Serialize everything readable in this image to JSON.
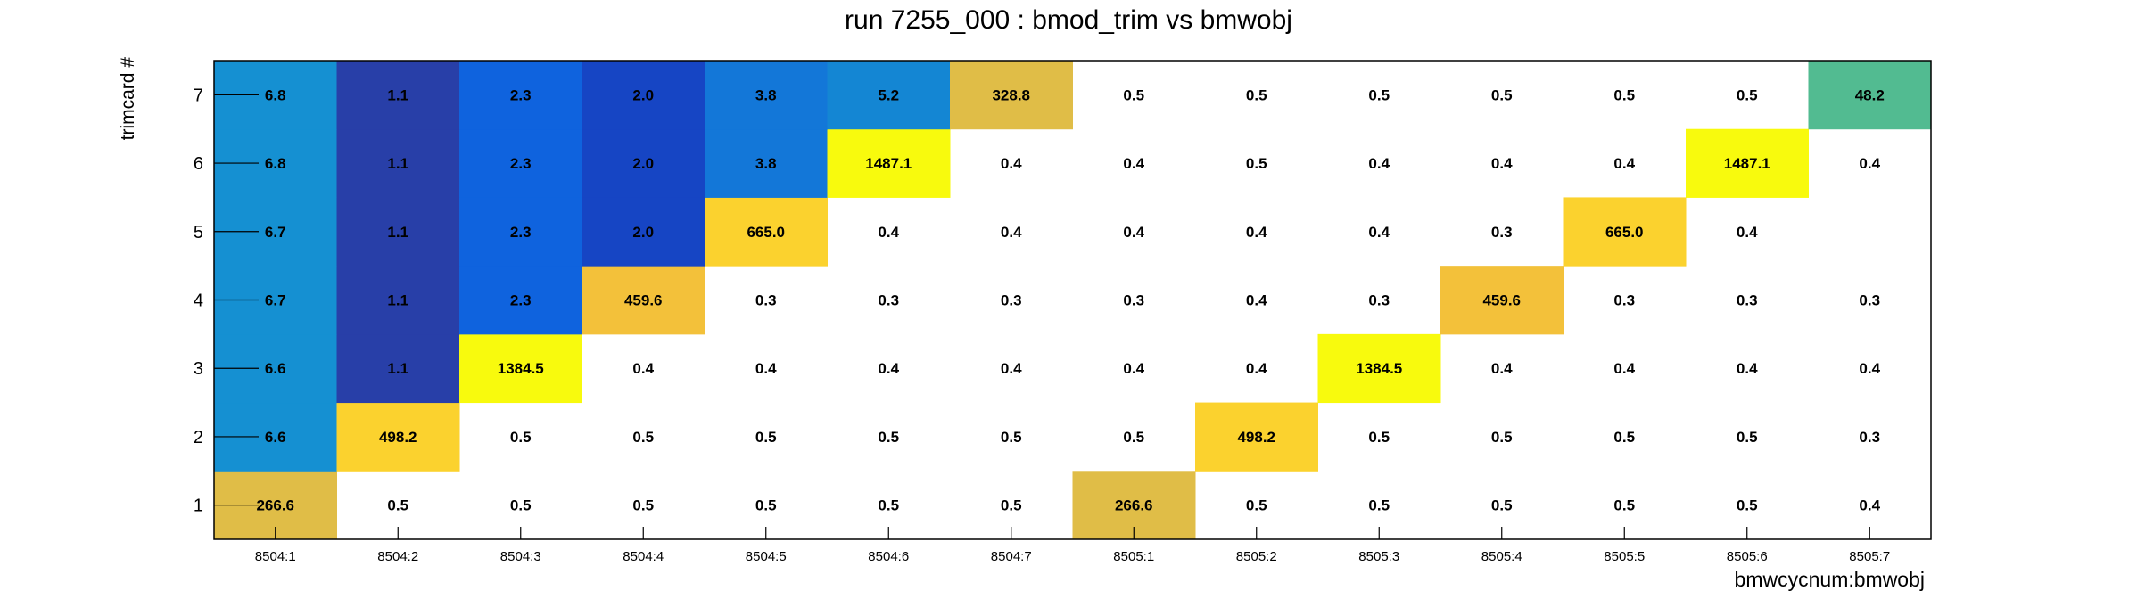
{
  "chart_data": {
    "type": "heatmap",
    "title": "run 7255_000 : bmod_trim vs bmwobj",
    "xlabel": "bmwcycnum:bmwobj",
    "ylabel": "trimcard #",
    "x_categories": [
      "8504:1",
      "8504:2",
      "8504:3",
      "8504:4",
      "8504:5",
      "8504:6",
      "8504:7",
      "8505:1",
      "8505:2",
      "8505:3",
      "8505:4",
      "8505:5",
      "8505:6",
      "8505:7"
    ],
    "y_categories": [
      "1",
      "2",
      "3",
      "4",
      "5",
      "6",
      "7"
    ],
    "values": [
      [
        266.6,
        0.5,
        0.5,
        0.5,
        0.5,
        0.5,
        0.5,
        266.6,
        0.5,
        0.5,
        0.5,
        0.5,
        0.5,
        0.4
      ],
      [
        6.6,
        498.2,
        0.5,
        0.5,
        0.5,
        0.5,
        0.5,
        0.5,
        498.2,
        0.5,
        0.5,
        0.5,
        0.5,
        0.3
      ],
      [
        6.6,
        1.1,
        1384.5,
        0.4,
        0.4,
        0.4,
        0.4,
        0.4,
        0.4,
        1384.5,
        0.4,
        0.4,
        0.4,
        0.4
      ],
      [
        6.7,
        1.1,
        2.3,
        459.6,
        0.3,
        0.3,
        0.3,
        0.3,
        0.4,
        0.3,
        459.6,
        0.3,
        0.3,
        0.3
      ],
      [
        6.7,
        1.1,
        2.3,
        2.0,
        665.0,
        0.4,
        0.4,
        0.4,
        0.4,
        0.4,
        0.3,
        665.0,
        0.4,
        null
      ],
      [
        6.8,
        1.1,
        2.3,
        2.0,
        3.8,
        1487.1,
        0.4,
        0.4,
        0.5,
        0.4,
        0.4,
        0.4,
        1487.1,
        0.4
      ],
      [
        6.8,
        1.1,
        2.3,
        2.0,
        3.8,
        5.2,
        328.8,
        0.5,
        0.5,
        0.5,
        0.5,
        0.5,
        0.5,
        48.2
      ]
    ],
    "cell_colors": [
      [
        "#e0bd47",
        null,
        null,
        null,
        null,
        null,
        null,
        "#e0bd47",
        null,
        null,
        null,
        null,
        null,
        null
      ],
      [
        "#1590d2",
        "#fbd22e",
        null,
        null,
        null,
        null,
        null,
        null,
        "#fbd22e",
        null,
        null,
        null,
        null,
        null
      ],
      [
        "#1590d2",
        "#283fa8",
        "#f8fa0d",
        null,
        null,
        null,
        null,
        null,
        null,
        "#f8fa0d",
        null,
        null,
        null,
        null
      ],
      [
        "#1590d2",
        "#283fa8",
        "#0f63de",
        "#f3c13a",
        null,
        null,
        null,
        null,
        null,
        null,
        "#f3c13a",
        null,
        null,
        null
      ],
      [
        "#1590d2",
        "#283fa8",
        "#0f63de",
        "#1645c4",
        "#fbd22e",
        null,
        null,
        null,
        null,
        null,
        null,
        "#fbd22e",
        null,
        null
      ],
      [
        "#1590d2",
        "#283fa8",
        "#0f63de",
        "#1645c4",
        "#1377d8",
        "#f8fa0d",
        null,
        null,
        null,
        null,
        null,
        null,
        "#f8fa0d",
        null
      ],
      [
        "#1590d2",
        "#283fa8",
        "#0f63de",
        "#1645c4",
        "#1377d8",
        "#1486d3",
        "#e0bd47",
        null,
        null,
        null,
        null,
        null,
        null,
        "#52bb91"
      ]
    ],
    "grid": false,
    "legend": "none"
  }
}
